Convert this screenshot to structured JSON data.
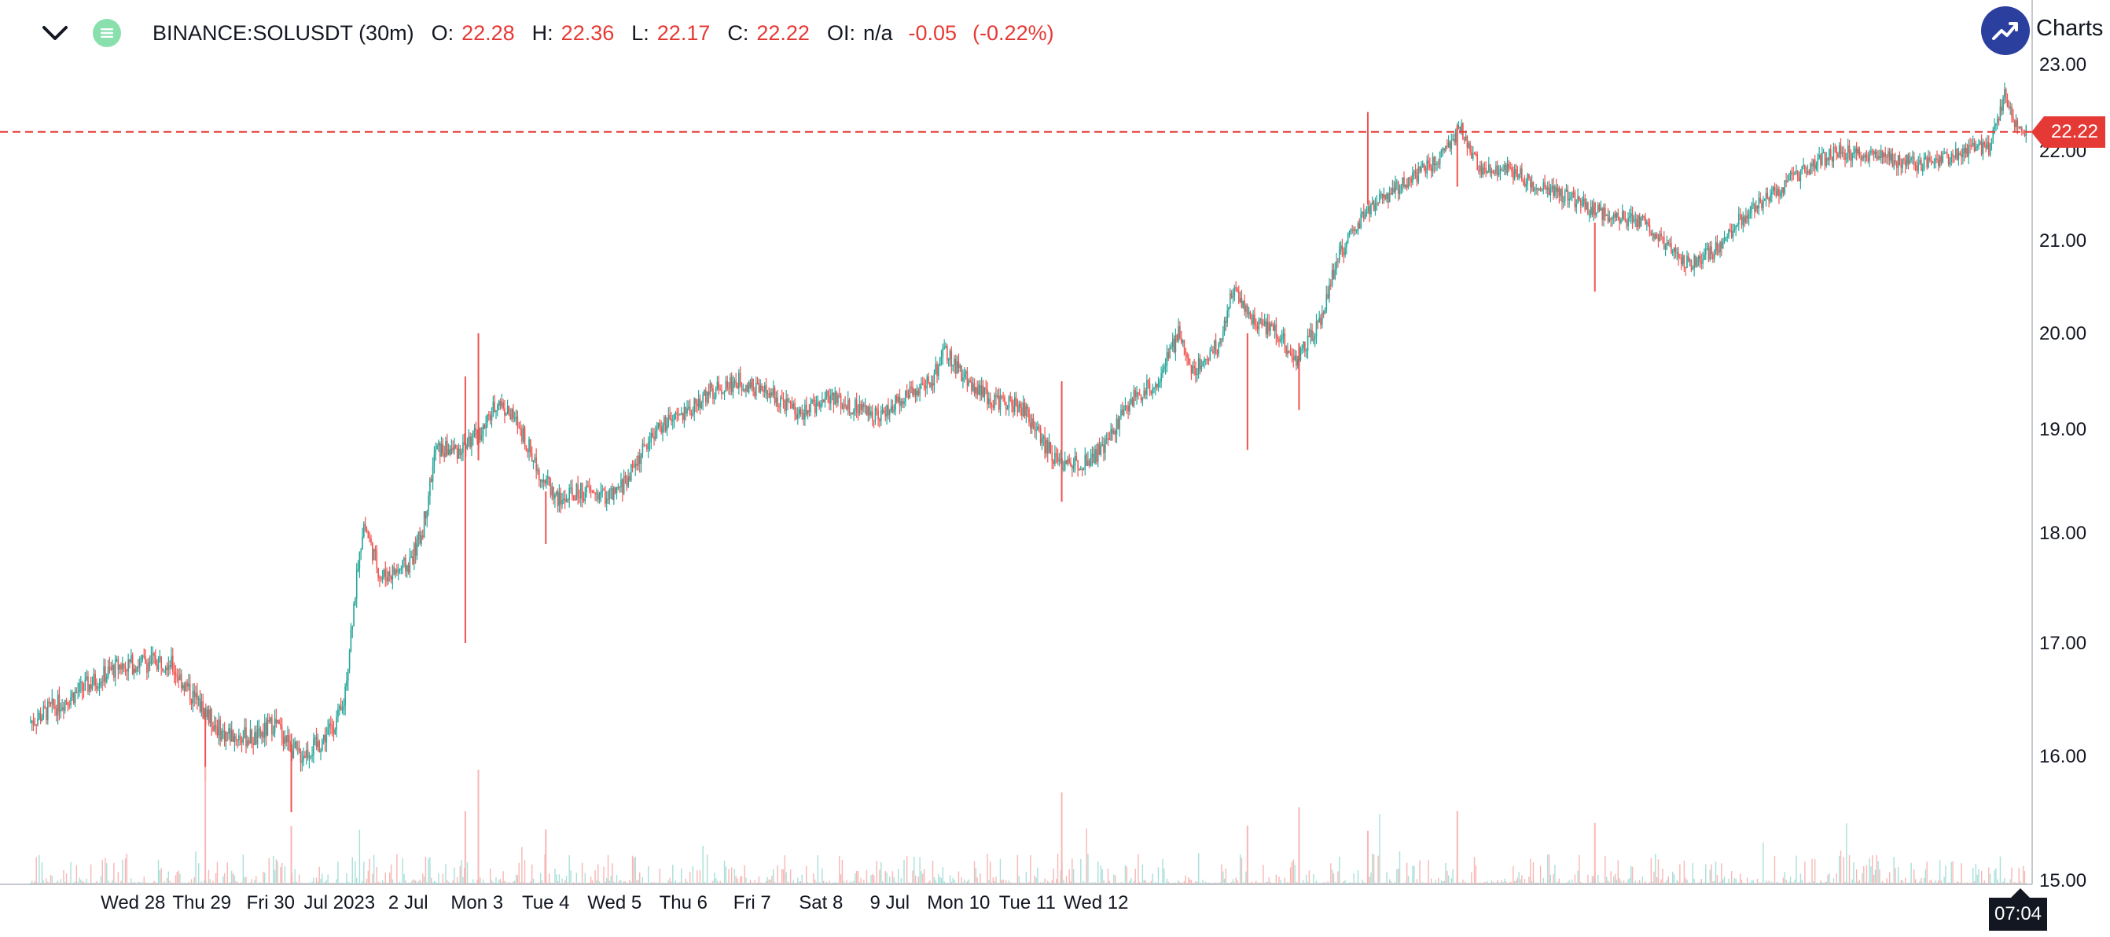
{
  "header": {
    "symbol": "BINANCE:SOLUSDT (30m)",
    "o_label": "O:",
    "o_value": "22.28",
    "h_label": "H:",
    "h_value": "22.36",
    "l_label": "L:",
    "l_value": "22.17",
    "c_label": "C:",
    "c_value": "22.22",
    "oi_label": "OI:",
    "oi_value": "n/a",
    "change": "-0.05",
    "change_pct": "(-0.22%)"
  },
  "brand": {
    "text": "Charts p",
    "logo_icon": "trend-chart-icon"
  },
  "colors": {
    "up": "#26a69a",
    "down": "#ef5350",
    "up_volume": "#a8e0d9",
    "down_volume": "#f7b7b5",
    "last_price": "#e53935"
  },
  "last_price": {
    "label": "22.22",
    "value": 22.22
  },
  "time_label": "07:04",
  "chart_data": {
    "type": "candlestick",
    "title": "",
    "xlabel": "",
    "ylabel": "",
    "ylim": [
      15.0,
      23.0
    ],
    "yticks": [
      "23.00",
      "22.00",
      "21.00",
      "20.00",
      "19.00",
      "18.00",
      "17.00",
      "16.00",
      "15.00"
    ],
    "x_tick_labels": [
      "Wed 28",
      "Thu 29",
      "Fri 30",
      "Jul 2023",
      "2 Jul",
      "Mon 3",
      "Tue 4",
      "Wed 5",
      "Thu 6",
      "Fri 7",
      "Sat 8",
      "9 Jul",
      "Mon 10",
      "Tue 11",
      "Wed 12"
    ],
    "price_path": [
      [
        0.0,
        16.3
      ],
      [
        1.3,
        16.8
      ],
      [
        2.0,
        16.85
      ],
      [
        2.4,
        16.5
      ],
      [
        2.8,
        16.2
      ],
      [
        3.3,
        16.15
      ],
      [
        3.55,
        16.3
      ],
      [
        3.9,
        16.0
      ],
      [
        4.2,
        16.1
      ],
      [
        4.55,
        16.4
      ],
      [
        4.7,
        17.3
      ],
      [
        4.85,
        18.1
      ],
      [
        5.1,
        17.6
      ],
      [
        5.5,
        17.7
      ],
      [
        5.7,
        18.0
      ],
      [
        5.9,
        18.8
      ],
      [
        6.25,
        18.8
      ],
      [
        6.6,
        19.0
      ],
      [
        6.8,
        19.3
      ],
      [
        7.1,
        19.05
      ],
      [
        7.4,
        18.6
      ],
      [
        7.7,
        18.3
      ],
      [
        8.0,
        18.4
      ],
      [
        8.5,
        18.35
      ],
      [
        8.7,
        18.55
      ],
      [
        9.1,
        19.0
      ],
      [
        9.5,
        19.15
      ],
      [
        9.9,
        19.4
      ],
      [
        10.3,
        19.5
      ],
      [
        10.8,
        19.35
      ],
      [
        11.2,
        19.15
      ],
      [
        11.6,
        19.35
      ],
      [
        11.9,
        19.25
      ],
      [
        12.4,
        19.15
      ],
      [
        12.8,
        19.4
      ],
      [
        13.1,
        19.5
      ],
      [
        13.3,
        19.8
      ],
      [
        13.7,
        19.45
      ],
      [
        14.0,
        19.3
      ],
      [
        14.4,
        19.25
      ],
      [
        14.7,
        18.9
      ],
      [
        15.0,
        18.65
      ],
      [
        15.3,
        18.7
      ],
      [
        15.6,
        18.8
      ],
      [
        16.0,
        19.3
      ],
      [
        16.4,
        19.5
      ],
      [
        16.7,
        20.0
      ],
      [
        16.9,
        19.6
      ],
      [
        17.3,
        19.9
      ],
      [
        17.5,
        20.5
      ],
      [
        17.8,
        20.1
      ],
      [
        18.1,
        20.05
      ],
      [
        18.4,
        19.7
      ],
      [
        18.75,
        20.1
      ],
      [
        19.0,
        20.8
      ],
      [
        19.4,
        21.3
      ],
      [
        19.8,
        21.55
      ],
      [
        20.3,
        21.8
      ],
      [
        20.6,
        22.0
      ],
      [
        20.8,
        22.25
      ],
      [
        21.1,
        21.75
      ],
      [
        21.5,
        21.8
      ],
      [
        21.9,
        21.6
      ],
      [
        22.3,
        21.5
      ],
      [
        22.7,
        21.35
      ],
      [
        23.1,
        21.25
      ],
      [
        23.5,
        21.2
      ],
      [
        23.8,
        20.9
      ],
      [
        24.1,
        20.75
      ],
      [
        24.5,
        20.9
      ],
      [
        25.0,
        21.35
      ],
      [
        25.4,
        21.55
      ],
      [
        25.8,
        21.8
      ],
      [
        26.3,
        22.0
      ],
      [
        26.7,
        21.95
      ],
      [
        27.1,
        21.9
      ],
      [
        27.4,
        21.85
      ],
      [
        27.8,
        21.9
      ],
      [
        28.2,
        22.0
      ],
      [
        28.5,
        22.05
      ],
      [
        28.7,
        22.65
      ],
      [
        28.9,
        22.25
      ],
      [
        29.0,
        22.22
      ]
    ],
    "spikes": [
      {
        "x": 6.33,
        "low": 17.0,
        "high": 19.55
      },
      {
        "x": 6.52,
        "low": 18.7,
        "high": 20.0
      },
      {
        "x": 7.5,
        "low": 17.9,
        "high": 18.4
      },
      {
        "x": 15.0,
        "low": 18.3,
        "high": 19.5
      },
      {
        "x": 17.7,
        "low": 18.8,
        "high": 20.0
      },
      {
        "x": 18.45,
        "low": 19.2,
        "high": 19.9
      },
      {
        "x": 19.45,
        "low": 21.4,
        "high": 22.45
      },
      {
        "x": 20.75,
        "low": 21.6,
        "high": 22.3
      },
      {
        "x": 22.75,
        "low": 20.45,
        "high": 21.2
      },
      {
        "x": 3.8,
        "low": 15.55,
        "high": 16.2
      },
      {
        "x": 2.55,
        "low": 15.8,
        "high": 16.4
      }
    ]
  }
}
